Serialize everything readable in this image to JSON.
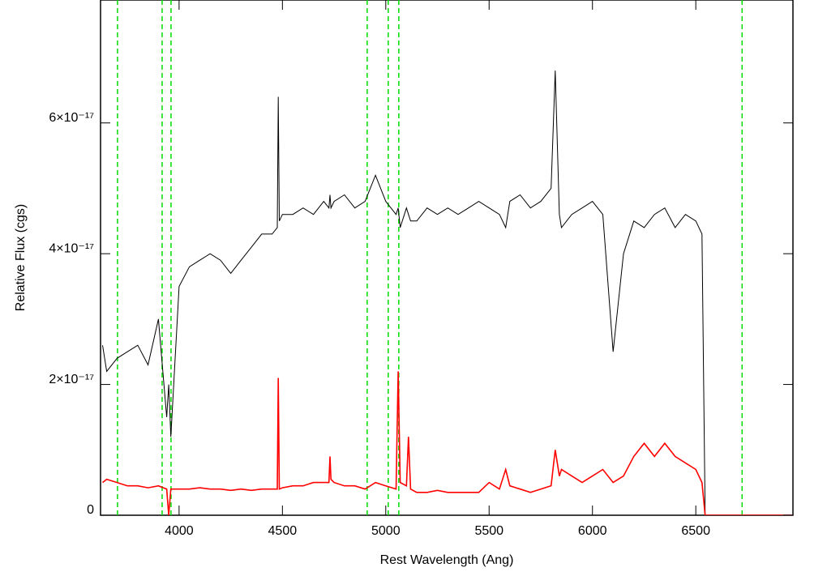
{
  "chart_data": {
    "type": "line",
    "x_label": "Rest Wavelength (Ang)",
    "y_label": "Relative Flux (cgs)",
    "xlim": [
      3620,
      6970
    ],
    "ylim": [
      0,
      7.88e-17
    ],
    "xticks": [
      4000,
      4500,
      5000,
      5500,
      6000,
      6500
    ],
    "yticks": [
      0,
      {
        "value": 2e-17,
        "label": "2×10⁻¹⁷"
      },
      {
        "value": 4e-17,
        "label": "4×10⁻¹⁷"
      },
      {
        "value": 6e-17,
        "label": "6×10⁻¹⁷"
      }
    ],
    "vlines": {
      "color": "#00dd00",
      "x": [
        3702,
        3918,
        3961,
        4910,
        5012,
        5063,
        6724
      ]
    },
    "x": [
      3630,
      3650,
      3700,
      3750,
      3800,
      3850,
      3900,
      3940,
      3950,
      3960,
      4000,
      4050,
      4100,
      4150,
      4200,
      4250,
      4300,
      4350,
      4400,
      4450,
      4475,
      4480,
      4485,
      4500,
      4550,
      4600,
      4650,
      4700,
      4725,
      4730,
      4735,
      4750,
      4800,
      4850,
      4900,
      4950,
      5000,
      5050,
      5060,
      5070,
      5100,
      5110,
      5120,
      5150,
      5200,
      5250,
      5300,
      5350,
      5400,
      5450,
      5500,
      5550,
      5580,
      5600,
      5650,
      5700,
      5750,
      5800,
      5820,
      5840,
      5850,
      5900,
      5950,
      6000,
      6050,
      6100,
      6150,
      6200,
      6250,
      6300,
      6350,
      6400,
      6450,
      6500,
      6530,
      6545,
      6700,
      6970
    ],
    "series": [
      {
        "color": "#000000",
        "values": [
          2.6e-17,
          2.2e-17,
          2.4e-17,
          2.5e-17,
          2.6e-17,
          2.3e-17,
          3e-17,
          1.5e-17,
          2e-17,
          1.2e-17,
          3.5e-17,
          3.8e-17,
          3.9e-17,
          4e-17,
          3.9e-17,
          3.7e-17,
          3.9e-17,
          4.1e-17,
          4.3e-17,
          4.3e-17,
          4.4e-17,
          6.4e-17,
          4.5e-17,
          4.6e-17,
          4.6e-17,
          4.7e-17,
          4.6e-17,
          4.8e-17,
          4.7e-17,
          4.9e-17,
          4.7e-17,
          4.8e-17,
          4.9e-17,
          4.7e-17,
          4.8e-17,
          5.2e-17,
          4.8e-17,
          4.6e-17,
          4.7e-17,
          4.4e-17,
          4.7e-17,
          4.6e-17,
          4.5e-17,
          4.5e-17,
          4.7e-17,
          4.6e-17,
          4.7e-17,
          4.6e-17,
          4.7e-17,
          4.8e-17,
          4.7e-17,
          4.6e-17,
          4.4e-17,
          4.8e-17,
          4.9e-17,
          4.7e-17,
          4.8e-17,
          5e-17,
          6.8e-17,
          4.6e-17,
          4.4e-17,
          4.6e-17,
          4.7e-17,
          4.8e-17,
          4.6e-17,
          2.5e-17,
          4e-17,
          4.5e-17,
          4.4e-17,
          4.6e-17,
          4.7e-17,
          4.4e-17,
          4.6e-17,
          4.5e-17,
          4.3e-17,
          0,
          null,
          null
        ]
      },
      {
        "color": "#ff0000",
        "values": [
          5e-18,
          5.5e-18,
          5e-18,
          4.5e-18,
          4.5e-18,
          4.2e-18,
          4.5e-18,
          4e-18,
          0,
          4e-18,
          4e-18,
          4e-18,
          4.2e-18,
          4e-18,
          4e-18,
          3.8e-18,
          4e-18,
          3.8e-18,
          4e-18,
          4e-18,
          4e-18,
          2.1e-17,
          4e-18,
          4.2e-18,
          4.5e-18,
          4.5e-18,
          5e-18,
          5e-18,
          5e-18,
          9e-18,
          5.5e-18,
          5e-18,
          4.5e-18,
          4.5e-18,
          4e-18,
          5e-18,
          4.5e-18,
          4e-18,
          2.2e-17,
          5e-18,
          4.5e-18,
          1.2e-17,
          4e-18,
          3.5e-18,
          3.5e-18,
          3.8e-18,
          3.5e-18,
          3.5e-18,
          3.5e-18,
          3.5e-18,
          5e-18,
          4e-18,
          7e-18,
          4.5e-18,
          4e-18,
          3.5e-18,
          4e-18,
          4.5e-18,
          1e-17,
          6e-18,
          7e-18,
          6e-18,
          5e-18,
          6e-18,
          7e-18,
          5e-18,
          6e-18,
          9e-18,
          1.1e-17,
          9e-18,
          1.1e-17,
          9e-18,
          8e-18,
          7e-18,
          5e-18,
          0,
          0,
          0
        ]
      }
    ]
  }
}
